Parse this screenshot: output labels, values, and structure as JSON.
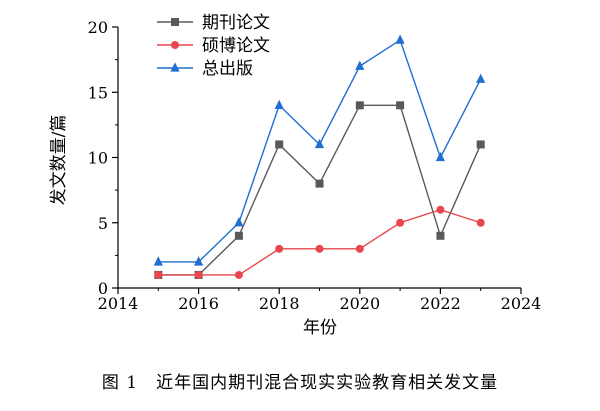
{
  "caption": {
    "figure_number": "图 1",
    "text": "近年国内期刊混合现实实验教育相关发文量"
  },
  "chart_data": {
    "type": "line",
    "title": "",
    "xlabel": "年份",
    "ylabel": "发文数量/篇",
    "xlim": [
      2014,
      2024
    ],
    "ylim": [
      0,
      20
    ],
    "xticks": [
      2014,
      2016,
      2018,
      2020,
      2022,
      2024
    ],
    "yticks": [
      0,
      5,
      10,
      15,
      20
    ],
    "grid": false,
    "legend_position": "top-left",
    "x": [
      2015,
      2016,
      2017,
      2018,
      2019,
      2020,
      2021,
      2022,
      2023
    ],
    "series": [
      {
        "name": "期刊论文",
        "marker": "square",
        "color": "#595959",
        "values": [
          1,
          1,
          4,
          11,
          8,
          14,
          14,
          4,
          11
        ]
      },
      {
        "name": "硕博论文",
        "marker": "circle",
        "color": "#e8474f",
        "values": [
          1,
          1,
          1,
          3,
          3,
          3,
          5,
          6,
          5
        ]
      },
      {
        "name": "总出版",
        "marker": "triangle",
        "color": "#1f6fd0",
        "values": [
          2,
          2,
          5,
          14,
          11,
          17,
          19,
          10,
          16
        ]
      }
    ]
  }
}
